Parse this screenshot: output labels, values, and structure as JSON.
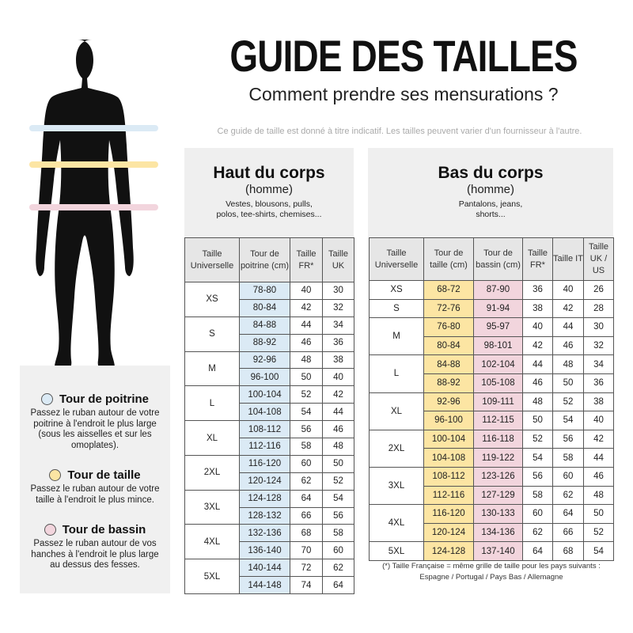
{
  "header": {
    "title": "GUIDE DES TAILLES",
    "subtitle": "Comment prendre ses mensurations ?",
    "disclaimer": "Ce guide de taille est donné à titre indicatif. Les tailles peuvent varier d'un fournisseur à l'autre."
  },
  "colors": {
    "chest": "#dbeaf5",
    "waist": "#fce5a3",
    "hips": "#f2d5dd",
    "header": "#e6e6e6"
  },
  "legend": [
    {
      "title": "Tour de poitrine",
      "desc": "Passez le ruban autour de votre poitrine à l'endroit le plus large (sous les aisselles et sur les omoplates).",
      "color": "#dbeaf5"
    },
    {
      "title": "Tour de taille",
      "desc": "Passez le ruban autour de votre taille à l'endroit le plus mince.",
      "color": "#fce5a3"
    },
    {
      "title": "Tour de bassin",
      "desc": "Passez le ruban autour de vos hanches à l'endroit le plus large au dessus des fesses.",
      "color": "#f2d5dd"
    }
  ],
  "top": {
    "heading": "Haut du corps",
    "sub": "(homme)",
    "desc": "Vestes, blousons, pulls, polos, tee-shirts, chemises...",
    "columns": [
      "Taille Universelle",
      "Tour de poitrine (cm)",
      "Taille FR*",
      "Taille UK"
    ],
    "groups": [
      {
        "size": "XS",
        "rows": [
          [
            "78-80",
            "40",
            "30"
          ],
          [
            "80-84",
            "42",
            "32"
          ]
        ]
      },
      {
        "size": "S",
        "rows": [
          [
            "84-88",
            "44",
            "34"
          ],
          [
            "88-92",
            "46",
            "36"
          ]
        ]
      },
      {
        "size": "M",
        "rows": [
          [
            "92-96",
            "48",
            "38"
          ],
          [
            "96-100",
            "50",
            "40"
          ]
        ]
      },
      {
        "size": "L",
        "rows": [
          [
            "100-104",
            "52",
            "42"
          ],
          [
            "104-108",
            "54",
            "44"
          ]
        ]
      },
      {
        "size": "XL",
        "rows": [
          [
            "108-112",
            "56",
            "46"
          ],
          [
            "112-116",
            "58",
            "48"
          ]
        ]
      },
      {
        "size": "2XL",
        "rows": [
          [
            "116-120",
            "60",
            "50"
          ],
          [
            "120-124",
            "62",
            "52"
          ]
        ]
      },
      {
        "size": "3XL",
        "rows": [
          [
            "124-128",
            "64",
            "54"
          ],
          [
            "128-132",
            "66",
            "56"
          ]
        ]
      },
      {
        "size": "4XL",
        "rows": [
          [
            "132-136",
            "68",
            "58"
          ],
          [
            "136-140",
            "70",
            "60"
          ]
        ]
      },
      {
        "size": "5XL",
        "rows": [
          [
            "140-144",
            "72",
            "62"
          ],
          [
            "144-148",
            "74",
            "64"
          ]
        ]
      }
    ]
  },
  "bottom": {
    "heading": "Bas du corps",
    "sub": "(homme)",
    "desc": "Pantalons, jeans, shorts...",
    "columns": [
      "Taille Universelle",
      "Tour de taille (cm)",
      "Tour de bassin (cm)",
      "Taille FR*",
      "Taille IT",
      "Taille UK / US"
    ],
    "groups": [
      {
        "size": "XS",
        "rows": [
          [
            "68-72",
            "87-90",
            "36",
            "40",
            "26"
          ]
        ]
      },
      {
        "size": "S",
        "rows": [
          [
            "72-76",
            "91-94",
            "38",
            "42",
            "28"
          ]
        ]
      },
      {
        "size": "M",
        "rows": [
          [
            "76-80",
            "95-97",
            "40",
            "44",
            "30"
          ],
          [
            "80-84",
            "98-101",
            "42",
            "46",
            "32"
          ]
        ]
      },
      {
        "size": "L",
        "rows": [
          [
            "84-88",
            "102-104",
            "44",
            "48",
            "34"
          ],
          [
            "88-92",
            "105-108",
            "46",
            "50",
            "36"
          ]
        ]
      },
      {
        "size": "XL",
        "rows": [
          [
            "92-96",
            "109-111",
            "48",
            "52",
            "38"
          ],
          [
            "96-100",
            "112-115",
            "50",
            "54",
            "40"
          ]
        ]
      },
      {
        "size": "2XL",
        "rows": [
          [
            "100-104",
            "116-118",
            "52",
            "56",
            "42"
          ],
          [
            "104-108",
            "119-122",
            "54",
            "58",
            "44"
          ]
        ]
      },
      {
        "size": "3XL",
        "rows": [
          [
            "108-112",
            "123-126",
            "56",
            "60",
            "46"
          ],
          [
            "112-116",
            "127-129",
            "58",
            "62",
            "48"
          ]
        ]
      },
      {
        "size": "4XL",
        "rows": [
          [
            "116-120",
            "130-133",
            "60",
            "64",
            "50"
          ],
          [
            "120-124",
            "134-136",
            "62",
            "66",
            "52"
          ]
        ]
      },
      {
        "size": "5XL",
        "rows": [
          [
            "124-128",
            "137-140",
            "64",
            "68",
            "54"
          ]
        ]
      }
    ]
  },
  "footnote": {
    "line1": "(*) Taille Française = même grille de taille pour les pays suivants :",
    "line2": "Espagne / Portugal / Pays Bas / Allemagne"
  }
}
